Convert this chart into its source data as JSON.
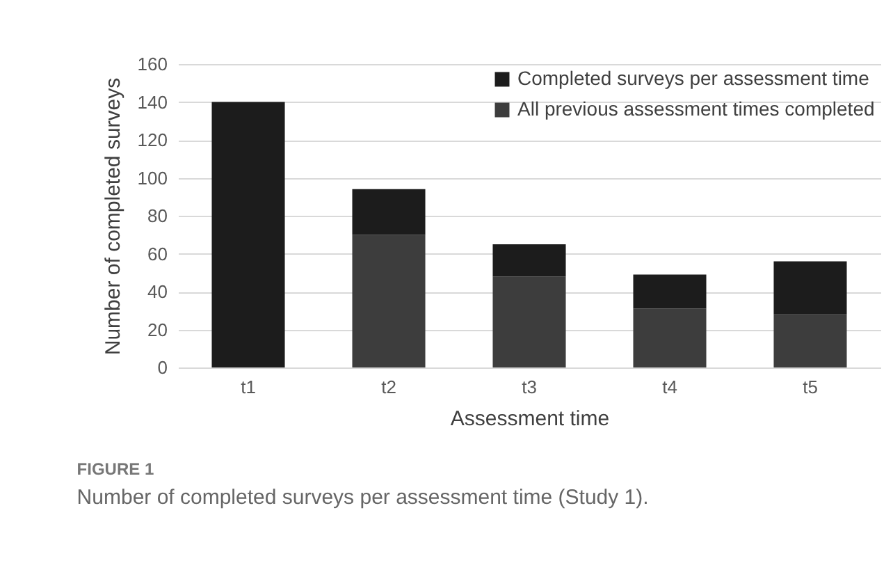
{
  "chart_data": {
    "type": "bar",
    "title": "FIGURE 1",
    "subtitle": "Number of completed surveys per assessment time (Study 1).",
    "xlabel": "Assessment time",
    "ylabel": "Number of completed surveys",
    "categories": [
      "t1",
      "t2",
      "t3",
      "t4",
      "t5"
    ],
    "stacked": true,
    "series": [
      {
        "name": "All previous assessment times completed",
        "color": "#3d3d3d",
        "values": [
          null,
          70,
          48,
          31,
          28
        ]
      },
      {
        "name": "Completed surveys per assessment time",
        "color": "#1c1c1c",
        "values": [
          140,
          24,
          17,
          18,
          28
        ]
      }
    ],
    "ylim": [
      0,
      160
    ],
    "yticks": [
      0,
      20,
      40,
      60,
      80,
      100,
      120,
      140,
      160
    ],
    "grid": "y",
    "legend": "top right"
  }
}
